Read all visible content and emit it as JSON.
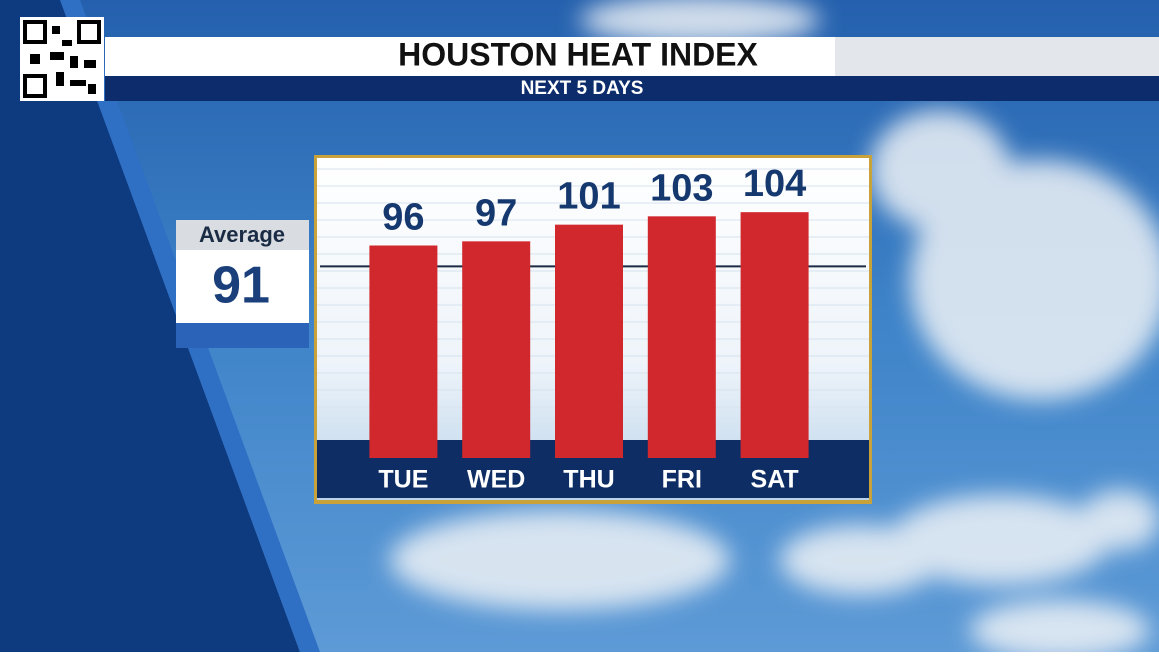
{
  "chart_data": {
    "type": "bar",
    "title": "HOUSTON HEAT INDEX",
    "subtitle": "NEXT 5 DAYS",
    "categories": [
      "TUE",
      "WED",
      "THU",
      "FRI",
      "SAT"
    ],
    "values": [
      96,
      97,
      101,
      103,
      104
    ],
    "color": "#d0282c",
    "ylim": [
      45,
      117
    ],
    "average": {
      "label": "Average",
      "value": 91
    }
  }
}
